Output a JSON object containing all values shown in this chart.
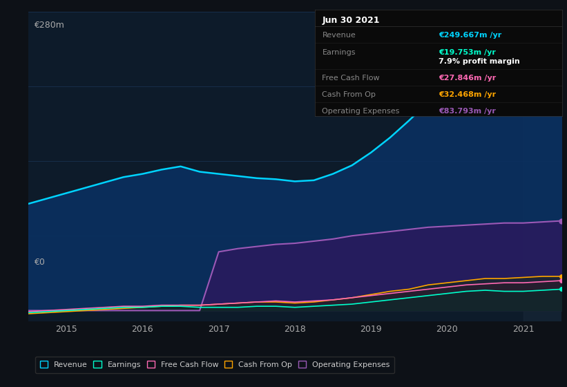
{
  "bg_color": "#0d1117",
  "plot_bg_color": "#0d1b2a",
  "grid_color": "#1e3a5f",
  "title_box": {
    "date": "Jun 30 2021",
    "revenue_label": "Revenue",
    "revenue_value": "€249.667m /yr",
    "revenue_color": "#00d4ff",
    "earnings_label": "Earnings",
    "earnings_value": "€19.753m /yr",
    "earnings_color": "#00ffcc",
    "profit_margin": "7.9% profit margin",
    "profit_color": "#ffffff",
    "fcf_label": "Free Cash Flow",
    "fcf_value": "€27.846m /yr",
    "fcf_color": "#ff69b4",
    "cashop_label": "Cash From Op",
    "cashop_value": "€32.468m /yr",
    "cashop_color": "#ffa500",
    "opex_label": "Operating Expenses",
    "opex_value": "€83.793m /yr",
    "opex_color": "#9b59b6"
  },
  "x_years": [
    2014.5,
    2014.75,
    2015.0,
    2015.25,
    2015.5,
    2015.75,
    2016.0,
    2016.25,
    2016.5,
    2016.75,
    2017.0,
    2017.25,
    2017.5,
    2017.75,
    2018.0,
    2018.25,
    2018.5,
    2018.75,
    2019.0,
    2019.25,
    2019.5,
    2019.75,
    2020.0,
    2020.25,
    2020.5,
    2020.75,
    2021.0,
    2021.25,
    2021.5
  ],
  "revenue": [
    100,
    105,
    110,
    115,
    120,
    125,
    128,
    132,
    135,
    130,
    128,
    126,
    124,
    123,
    121,
    122,
    128,
    136,
    148,
    162,
    178,
    195,
    215,
    240,
    255,
    248,
    235,
    240,
    249
  ],
  "earnings": [
    -2,
    -1,
    0,
    1,
    2,
    3,
    3,
    4,
    4,
    3,
    3,
    3,
    4,
    4,
    3,
    4,
    5,
    6,
    8,
    10,
    12,
    14,
    16,
    18,
    19,
    18,
    18,
    19,
    20
  ],
  "free_cash_flow": [
    -1,
    0,
    1,
    2,
    3,
    4,
    4,
    5,
    5,
    5,
    6,
    7,
    8,
    9,
    8,
    9,
    10,
    12,
    14,
    16,
    18,
    20,
    22,
    24,
    25,
    26,
    26,
    27,
    28
  ],
  "cash_from_op": [
    -3,
    -2,
    -1,
    0,
    1,
    2,
    3,
    4,
    5,
    5,
    6,
    7,
    8,
    8,
    7,
    8,
    10,
    12,
    15,
    18,
    20,
    24,
    26,
    28,
    30,
    30,
    31,
    32,
    32
  ],
  "operating_expenses": [
    0,
    0,
    0,
    0,
    0,
    0,
    0,
    0,
    0,
    0,
    55,
    58,
    60,
    62,
    63,
    65,
    67,
    70,
    72,
    74,
    76,
    78,
    79,
    80,
    81,
    82,
    82,
    83,
    84
  ],
  "ylabel_top": "€280m",
  "ylabel_bottom": "€0",
  "x_ticks": [
    2015,
    2016,
    2017,
    2018,
    2019,
    2020,
    2021
  ],
  "legend": [
    {
      "label": "Revenue",
      "color": "#00d4ff"
    },
    {
      "label": "Earnings",
      "color": "#00ffcc"
    },
    {
      "label": "Free Cash Flow",
      "color": "#ff69b4"
    },
    {
      "label": "Cash From Op",
      "color": "#ffa500"
    },
    {
      "label": "Operating Expenses",
      "color": "#9b59b6"
    }
  ]
}
